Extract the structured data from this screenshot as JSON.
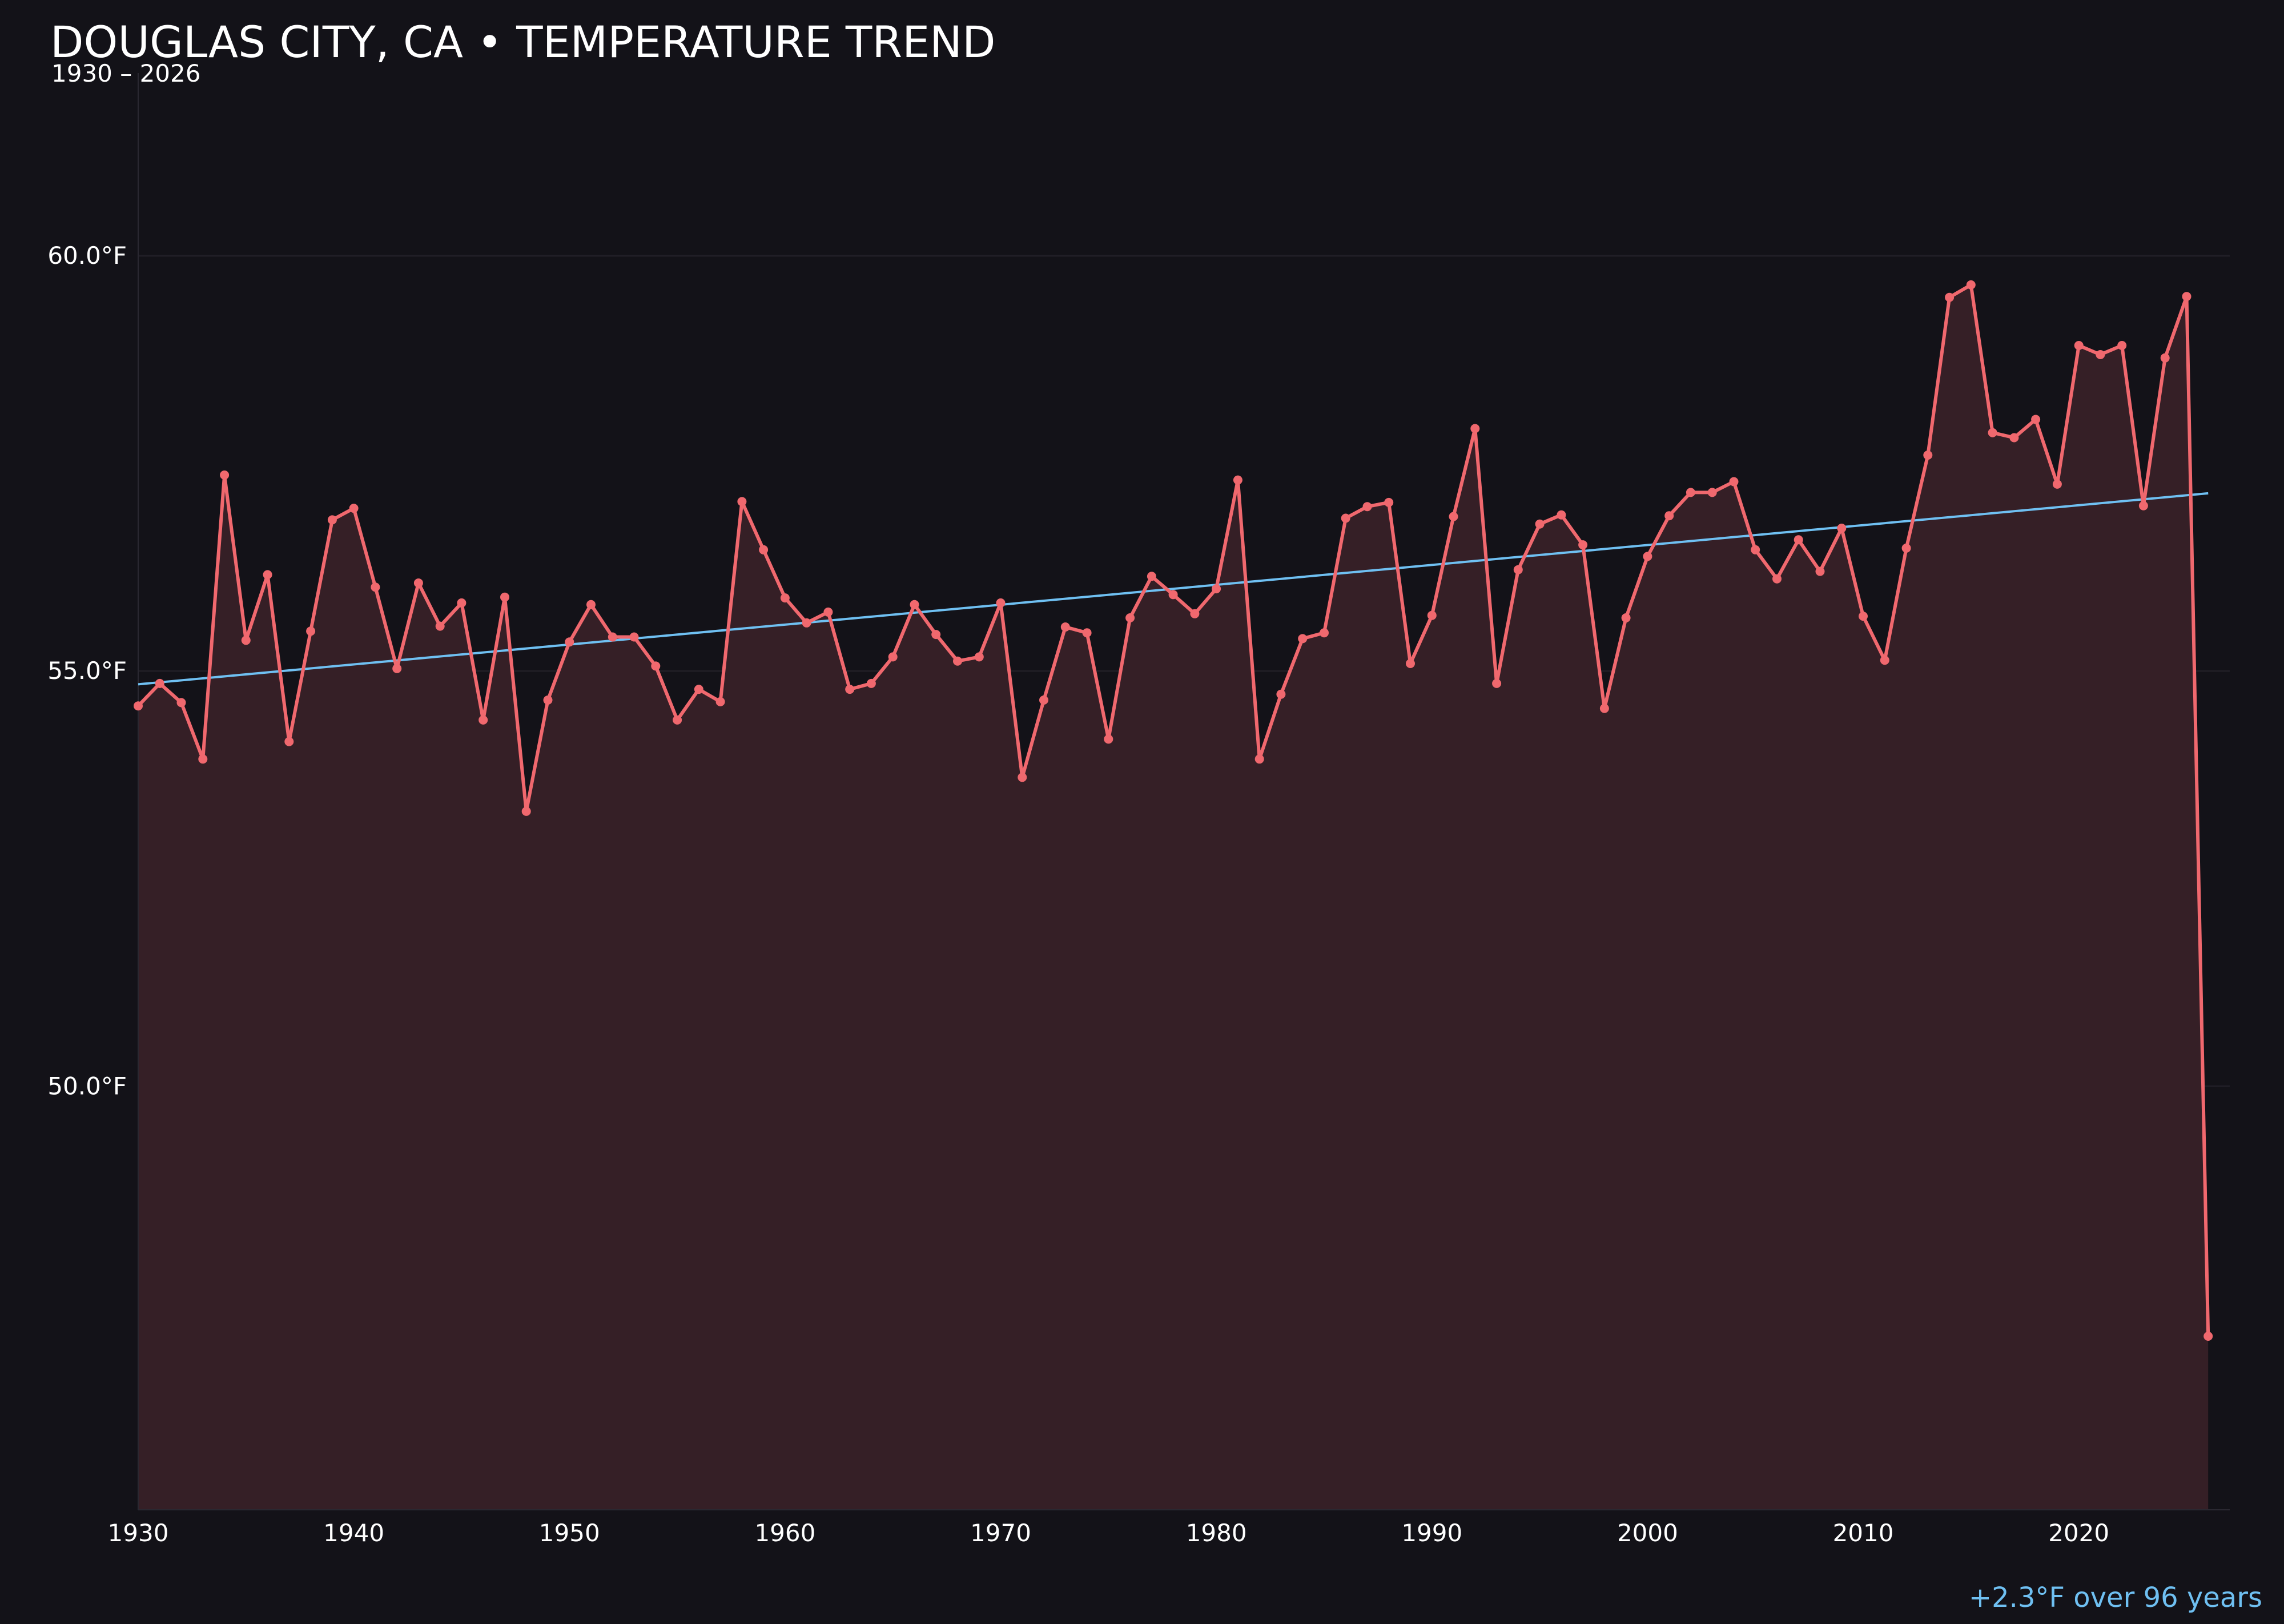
{
  "chart_data": {
    "type": "line",
    "title": "DOUGLAS CITY, CA • TEMPERATURE TREND",
    "subtitle": "1930 – 2026",
    "xlabel": "",
    "ylabel": "",
    "xlim": [
      1930,
      2027
    ],
    "ylim": [
      44.9,
      62.2
    ],
    "x_ticks": [
      1930,
      1940,
      1950,
      1960,
      1970,
      1980,
      1990,
      2000,
      2010,
      2020
    ],
    "x_tick_labels": [
      "1930",
      "1940",
      "1950",
      "1960",
      "1970",
      "1980",
      "1990",
      "2000",
      "2010",
      "2020"
    ],
    "y_ticks": [
      50.0,
      55.0,
      60.0
    ],
    "y_tick_labels": [
      "50.0°F",
      "55.0°F",
      "60.0°F"
    ],
    "grid": "horizontal",
    "x": [
      1930,
      1931,
      1932,
      1933,
      1934,
      1935,
      1936,
      1937,
      1938,
      1939,
      1940,
      1941,
      1942,
      1943,
      1944,
      1945,
      1946,
      1947,
      1948,
      1949,
      1950,
      1951,
      1952,
      1953,
      1954,
      1955,
      1956,
      1957,
      1958,
      1959,
      1960,
      1961,
      1962,
      1963,
      1964,
      1965,
      1966,
      1967,
      1968,
      1969,
      1970,
      1971,
      1972,
      1973,
      1974,
      1975,
      1976,
      1977,
      1978,
      1979,
      1980,
      1981,
      1982,
      1983,
      1984,
      1985,
      1986,
      1987,
      1988,
      1989,
      1990,
      1991,
      1992,
      1993,
      1994,
      1995,
      1996,
      1997,
      1998,
      1999,
      2000,
      2001,
      2002,
      2003,
      2004,
      2005,
      2006,
      2007,
      2008,
      2009,
      2010,
      2011,
      2012,
      2013,
      2014,
      2015,
      2016,
      2017,
      2018,
      2019,
      2020,
      2021,
      2022,
      2023,
      2024,
      2025,
      2026
    ],
    "series": [
      {
        "values": [
          54.58,
          54.85,
          54.62,
          53.94,
          57.36,
          55.37,
          56.16,
          54.15,
          55.48,
          56.82,
          56.96,
          56.01,
          55.03,
          56.06,
          55.54,
          55.82,
          54.41,
          55.89,
          53.31,
          54.65,
          55.35,
          55.8,
          55.41,
          55.41,
          55.06,
          54.41,
          54.78,
          54.63,
          57.04,
          56.46,
          55.88,
          55.58,
          55.71,
          54.78,
          54.85,
          55.17,
          55.8,
          55.44,
          55.12,
          55.17,
          55.82,
          53.72,
          54.65,
          55.53,
          55.46,
          54.18,
          55.64,
          56.14,
          55.92,
          55.69,
          55.99,
          57.3,
          53.94,
          54.72,
          55.39,
          55.46,
          56.84,
          56.98,
          57.03,
          55.09,
          55.67,
          56.86,
          57.92,
          54.85,
          56.22,
          56.77,
          56.88,
          56.52,
          54.55,
          55.64,
          56.38,
          56.87,
          57.15,
          57.15,
          57.28,
          56.46,
          56.11,
          56.58,
          56.2,
          56.72,
          55.66,
          55.13,
          56.48,
          57.6,
          59.5,
          59.65,
          57.87,
          57.81,
          58.03,
          57.25,
          58.92,
          58.81,
          58.92,
          56.99,
          58.77,
          59.51,
          46.99
        ]
      }
    ],
    "trend": {
      "start_year": 1930,
      "start_value": 54.84,
      "end_year": 2026,
      "end_value": 57.14
    },
    "annotation": "+2.3°F over 96 years",
    "colors": {
      "background": "#131218",
      "line": "#f0686e",
      "fill": "#351f26",
      "trend": "#6fc0f2",
      "grid": "#201e26",
      "text": "#ffffff",
      "annotation": "#6fc0f2"
    }
  }
}
